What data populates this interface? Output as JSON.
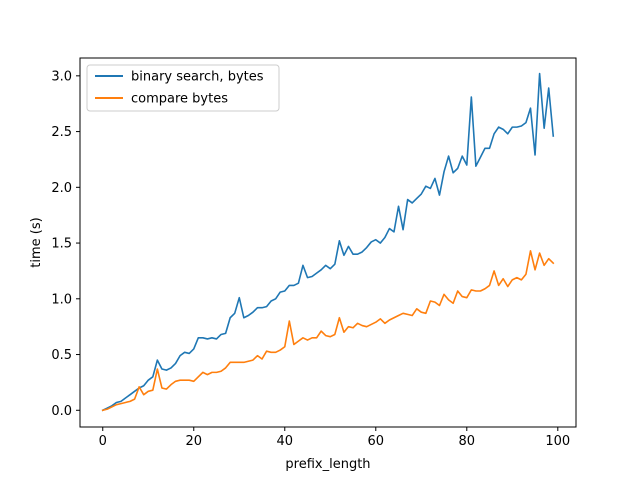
{
  "chart_data": {
    "type": "line",
    "xlabel": "prefix_length",
    "ylabel": "time (s)",
    "xlim": [
      -5,
      104
    ],
    "ylim": [
      -0.15,
      3.16
    ],
    "xticks": [
      0,
      20,
      40,
      60,
      80,
      100
    ],
    "xtick_labels": [
      "0",
      "20",
      "40",
      "60",
      "80",
      "100"
    ],
    "yticks": [
      0.0,
      0.5,
      1.0,
      1.5,
      2.0,
      2.5,
      3.0
    ],
    "ytick_labels": [
      "0.0",
      "0.5",
      "1.0",
      "1.5",
      "2.0",
      "2.5",
      "3.0"
    ],
    "grid": false,
    "legend_position": "top-left",
    "series": [
      {
        "name": "binary search, bytes",
        "color": "#1f77b4",
        "values": [
          0.0,
          0.02,
          0.04,
          0.07,
          0.08,
          0.11,
          0.14,
          0.17,
          0.2,
          0.22,
          0.27,
          0.3,
          0.45,
          0.37,
          0.36,
          0.38,
          0.42,
          0.49,
          0.52,
          0.51,
          0.55,
          0.65,
          0.65,
          0.64,
          0.65,
          0.64,
          0.68,
          0.69,
          0.83,
          0.87,
          1.01,
          0.83,
          0.85,
          0.88,
          0.92,
          0.92,
          0.93,
          0.98,
          1.0,
          1.06,
          1.07,
          1.12,
          1.12,
          1.14,
          1.3,
          1.19,
          1.2,
          1.23,
          1.26,
          1.3,
          1.27,
          1.31,
          1.52,
          1.39,
          1.47,
          1.4,
          1.4,
          1.42,
          1.46,
          1.51,
          1.53,
          1.5,
          1.55,
          1.63,
          1.6,
          1.83,
          1.62,
          1.89,
          1.86,
          1.9,
          1.94,
          2.01,
          1.99,
          2.08,
          1.93,
          2.14,
          2.28,
          2.13,
          2.17,
          2.28,
          2.2,
          2.81,
          2.19,
          2.27,
          2.35,
          2.35,
          2.48,
          2.54,
          2.52,
          2.48,
          2.54,
          2.54,
          2.55,
          2.58,
          2.71,
          2.29,
          3.02,
          2.53,
          2.89,
          2.46
        ]
      },
      {
        "name": "compare bytes",
        "color": "#ff7f0e",
        "values": [
          0.0,
          0.01,
          0.03,
          0.05,
          0.06,
          0.07,
          0.08,
          0.1,
          0.21,
          0.14,
          0.17,
          0.18,
          0.37,
          0.2,
          0.19,
          0.23,
          0.26,
          0.27,
          0.27,
          0.27,
          0.26,
          0.3,
          0.34,
          0.32,
          0.34,
          0.34,
          0.35,
          0.38,
          0.43,
          0.43,
          0.43,
          0.43,
          0.44,
          0.45,
          0.49,
          0.46,
          0.53,
          0.52,
          0.52,
          0.54,
          0.57,
          0.8,
          0.59,
          0.62,
          0.65,
          0.63,
          0.65,
          0.65,
          0.71,
          0.67,
          0.66,
          0.68,
          0.83,
          0.7,
          0.75,
          0.74,
          0.78,
          0.76,
          0.75,
          0.77,
          0.79,
          0.82,
          0.78,
          0.81,
          0.83,
          0.85,
          0.87,
          0.86,
          0.85,
          0.91,
          0.88,
          0.87,
          0.98,
          0.97,
          0.94,
          1.04,
          0.99,
          0.96,
          1.07,
          1.02,
          1.01,
          1.08,
          1.07,
          1.07,
          1.09,
          1.12,
          1.25,
          1.12,
          1.18,
          1.11,
          1.17,
          1.19,
          1.17,
          1.22,
          1.43,
          1.26,
          1.41,
          1.3,
          1.36,
          1.32
        ]
      }
    ]
  }
}
